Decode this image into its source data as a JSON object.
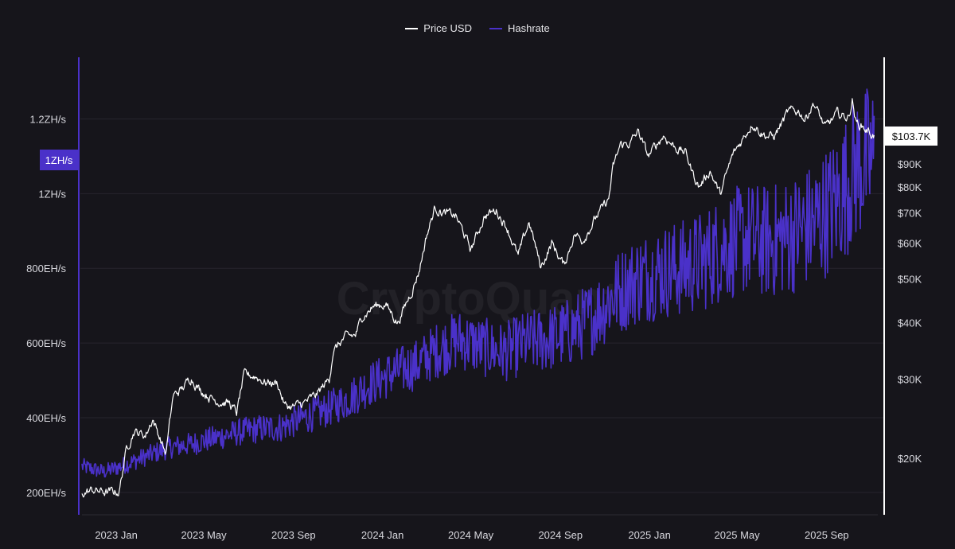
{
  "chart_data": {
    "type": "line",
    "watermark": "CryptoQuant",
    "legend": [
      {
        "name": "Price USD",
        "color": "#ffffff"
      },
      {
        "name": "Hashrate",
        "color": "#4a31c9"
      }
    ],
    "x_ticks": [
      "2023 Jan",
      "2023 May",
      "2023 Sep",
      "2024 Jan",
      "2024 May",
      "2024 Sep",
      "2025 Jan",
      "2025 May",
      "2025 Sep"
    ],
    "x_range": [
      "2022-11-15",
      "2025-11-10"
    ],
    "y_left": {
      "unit": "EH/s",
      "ticks": [
        {
          "value": 200,
          "label": "200EH/s"
        },
        {
          "value": 400,
          "label": "400EH/s"
        },
        {
          "value": 600,
          "label": "600EH/s"
        },
        {
          "value": 800,
          "label": "800EH/s"
        },
        {
          "value": 1000,
          "label": "1ZH/s"
        },
        {
          "value": 1200,
          "label": "1.2ZH/s"
        }
      ],
      "range": [
        140,
        1365
      ],
      "current_badge": "1ZH/s",
      "current_value": 1090
    },
    "y_right": {
      "scale": "log",
      "unit": "USD",
      "ticks": [
        {
          "value": 20000,
          "label": "$20K"
        },
        {
          "value": 30000,
          "label": "$30K"
        },
        {
          "value": 40000,
          "label": "$40K"
        },
        {
          "value": 50000,
          "label": "$50K"
        },
        {
          "value": 60000,
          "label": "$60K"
        },
        {
          "value": 70000,
          "label": "$70K"
        },
        {
          "value": 80000,
          "label": "$80K"
        },
        {
          "value": 90000,
          "label": "$90K"
        }
      ],
      "range": [
        15000,
        155000
      ],
      "current_badge": "$103.7K",
      "current_value": 103700
    },
    "series": [
      {
        "name": "Price USD",
        "axis": "right",
        "points": [
          [
            "2022-11-15",
            16800
          ],
          [
            "2022-12-01",
            17000
          ],
          [
            "2022-12-20",
            16800
          ],
          [
            "2023-01-05",
            16900
          ],
          [
            "2023-01-15",
            21000
          ],
          [
            "2023-01-25",
            23000
          ],
          [
            "2023-02-10",
            22500
          ],
          [
            "2023-02-20",
            24500
          ],
          [
            "2023-03-10",
            20500
          ],
          [
            "2023-03-20",
            27500
          ],
          [
            "2023-04-01",
            28500
          ],
          [
            "2023-04-14",
            30300
          ],
          [
            "2023-04-25",
            28500
          ],
          [
            "2023-05-15",
            27000
          ],
          [
            "2023-06-05",
            26500
          ],
          [
            "2023-06-15",
            25200
          ],
          [
            "2023-06-25",
            30500
          ],
          [
            "2023-07-10",
            30500
          ],
          [
            "2023-07-25",
            29500
          ],
          [
            "2023-08-10",
            29400
          ],
          [
            "2023-08-20",
            26200
          ],
          [
            "2023-09-01",
            26000
          ],
          [
            "2023-09-15",
            26500
          ],
          [
            "2023-10-01",
            27500
          ],
          [
            "2023-10-20",
            30000
          ],
          [
            "2023-10-25",
            34500
          ],
          [
            "2023-11-10",
            37000
          ],
          [
            "2023-11-25",
            37500
          ],
          [
            "2023-12-05",
            41500
          ],
          [
            "2023-12-20",
            43500
          ],
          [
            "2024-01-05",
            44000
          ],
          [
            "2024-01-22",
            40000
          ],
          [
            "2024-02-10",
            47000
          ],
          [
            "2024-02-20",
            52000
          ],
          [
            "2024-03-01",
            62000
          ],
          [
            "2024-03-13",
            72000
          ],
          [
            "2024-03-25",
            70000
          ],
          [
            "2024-04-10",
            69000
          ],
          [
            "2024-04-20",
            64000
          ],
          [
            "2024-05-01",
            58000
          ],
          [
            "2024-05-20",
            69000
          ],
          [
            "2024-06-05",
            71000
          ],
          [
            "2024-06-20",
            65000
          ],
          [
            "2024-07-05",
            56000
          ],
          [
            "2024-07-20",
            67000
          ],
          [
            "2024-08-05",
            53000
          ],
          [
            "2024-08-20",
            60000
          ],
          [
            "2024-09-06",
            53500
          ],
          [
            "2024-09-20",
            63000
          ],
          [
            "2024-10-01",
            61000
          ],
          [
            "2024-10-20",
            68500
          ],
          [
            "2024-11-06",
            75000
          ],
          [
            "2024-11-12",
            88000
          ],
          [
            "2024-11-22",
            99000
          ],
          [
            "2024-12-05",
            100000
          ],
          [
            "2024-12-17",
            106000
          ],
          [
            "2024-12-30",
            93500
          ],
          [
            "2025-01-20",
            104000
          ],
          [
            "2025-02-05",
            98000
          ],
          [
            "2025-02-20",
            95000
          ],
          [
            "2025-03-01",
            86000
          ],
          [
            "2025-03-10",
            80000
          ],
          [
            "2025-03-25",
            87000
          ],
          [
            "2025-04-08",
            77000
          ],
          [
            "2025-04-25",
            94000
          ],
          [
            "2025-05-10",
            103000
          ],
          [
            "2025-05-22",
            111000
          ],
          [
            "2025-06-05",
            105000
          ],
          [
            "2025-06-20",
            103000
          ],
          [
            "2025-07-10",
            117000
          ],
          [
            "2025-07-25",
            118000
          ],
          [
            "2025-08-02",
            113000
          ],
          [
            "2025-08-14",
            123000
          ],
          [
            "2025-08-30",
            108000
          ],
          [
            "2025-09-15",
            116000
          ],
          [
            "2025-10-01",
            114000
          ],
          [
            "2025-10-06",
            125000
          ],
          [
            "2025-10-11",
            111000
          ],
          [
            "2025-10-20",
            109000
          ],
          [
            "2025-11-05",
            103700
          ]
        ]
      },
      {
        "name": "Hashrate",
        "axis": "left",
        "points": [
          [
            "2022-11-15",
            270
          ],
          [
            "2022-12-15",
            255
          ],
          [
            "2023-01-15",
            275
          ],
          [
            "2023-02-15",
            300
          ],
          [
            "2023-03-15",
            320
          ],
          [
            "2023-04-15",
            330
          ],
          [
            "2023-05-15",
            345
          ],
          [
            "2023-06-15",
            360
          ],
          [
            "2023-07-15",
            370
          ],
          [
            "2023-08-15",
            375
          ],
          [
            "2023-09-15",
            400
          ],
          [
            "2023-10-15",
            420
          ],
          [
            "2023-11-15",
            450
          ],
          [
            "2023-12-15",
            490
          ],
          [
            "2024-01-15",
            520
          ],
          [
            "2024-02-15",
            540
          ],
          [
            "2024-03-15",
            580
          ],
          [
            "2024-04-15",
            610
          ],
          [
            "2024-05-15",
            590
          ],
          [
            "2024-06-15",
            575
          ],
          [
            "2024-07-15",
            600
          ],
          [
            "2024-08-15",
            610
          ],
          [
            "2024-09-15",
            630
          ],
          [
            "2024-10-15",
            670
          ],
          [
            "2024-11-15",
            730
          ],
          [
            "2024-12-15",
            770
          ],
          [
            "2025-01-15",
            790
          ],
          [
            "2025-02-15",
            800
          ],
          [
            "2025-03-15",
            820
          ],
          [
            "2025-04-15",
            860
          ],
          [
            "2025-05-15",
            880
          ],
          [
            "2025-06-15",
            870
          ],
          [
            "2025-07-15",
            890
          ],
          [
            "2025-08-15",
            920
          ],
          [
            "2025-09-15",
            980
          ],
          [
            "2025-10-15",
            1080
          ],
          [
            "2025-11-05",
            1090
          ]
        ]
      }
    ]
  }
}
